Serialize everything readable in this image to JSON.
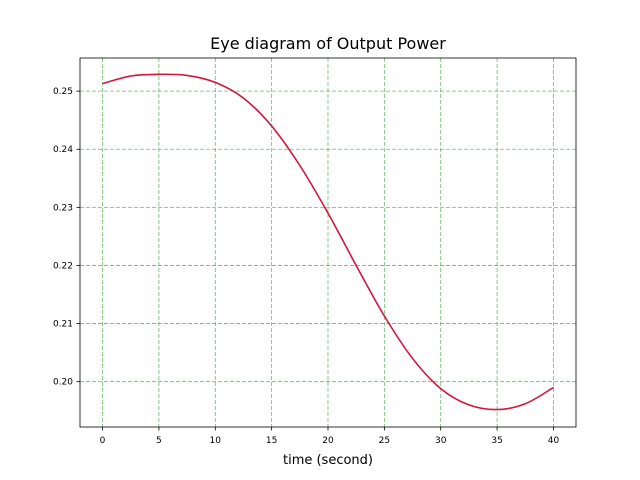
{
  "chart_data": {
    "type": "line",
    "title": "Eye diagram of Output Power",
    "xlabel": "time (second)",
    "ylabel": "",
    "xlim": [
      -2,
      42
    ],
    "ylim": [
      0.1922,
      0.2557
    ],
    "xticks": [
      0,
      5,
      10,
      15,
      20,
      25,
      30,
      35,
      40
    ],
    "xtick_labels": [
      "0",
      "5",
      "10",
      "15",
      "20",
      "25",
      "30",
      "35",
      "40"
    ],
    "yticks": [
      0.2,
      0.21,
      0.22,
      0.23,
      0.24,
      0.25
    ],
    "ytick_labels": [
      "0.20",
      "0.21",
      "0.22",
      "0.23",
      "0.24",
      "0.25"
    ],
    "grid": true,
    "grid_color": "#2ca02c",
    "series": [
      {
        "color": "#d6143c",
        "x": [
          0,
          2.5,
          5,
          7.5,
          10,
          12.5,
          15,
          17.5,
          20,
          22.5,
          25,
          27.5,
          30,
          32.5,
          35,
          37.5,
          40
        ],
        "y": [
          0.2513,
          0.2526,
          0.2529,
          0.2527,
          0.2515,
          0.2488,
          0.244,
          0.2372,
          0.229,
          0.22,
          0.2113,
          0.204,
          0.1988,
          0.196,
          0.1952,
          0.1962,
          0.199
        ]
      }
    ]
  }
}
